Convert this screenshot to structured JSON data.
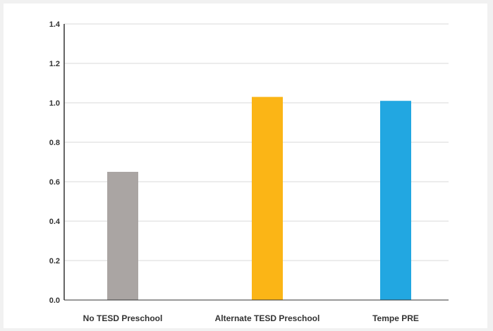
{
  "chart_data": {
    "type": "bar",
    "categories": [
      "No TESD Preschool",
      "Alternate TESD Preschool",
      "Tempe PRE"
    ],
    "values": [
      0.65,
      1.03,
      1.01
    ],
    "colors": [
      "#aaa5a3",
      "#fbb516",
      "#22a7e1"
    ],
    "y_ticks": [
      "0.0",
      "0.2",
      "0.4",
      "0.6",
      "0.8",
      "1.0",
      "1.2",
      "1.4"
    ],
    "ylim": [
      0,
      1.4
    ],
    "grid": true,
    "legend": "none",
    "title": "",
    "xlabel": "",
    "ylabel": ""
  }
}
